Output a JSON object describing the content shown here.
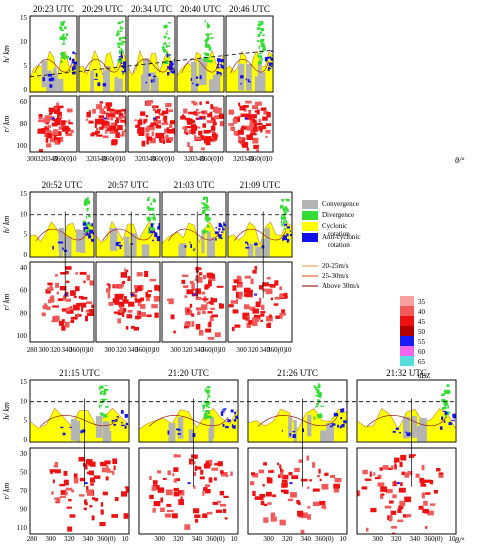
{
  "figure": {
    "rows": [
      {
        "titles": [
          "20:23 UTC",
          "20:29 UTC",
          "20:34 UTC",
          "20:40 UTC",
          "20:46 UTC"
        ],
        "h_ticks": [
          "0",
          "5",
          "10",
          "15"
        ],
        "r_ticks": [
          "60",
          "80",
          "100"
        ],
        "x_ticks": [
          "300",
          "320",
          "340",
          "360(0)",
          "10"
        ]
      },
      {
        "titles": [
          "20:52 UTC",
          "20:57 UTC",
          "21:03 UTC",
          "21:09 UTC"
        ],
        "h_ticks": [
          "0",
          "5",
          "10",
          "15"
        ],
        "r_ticks": [
          "40",
          "60",
          "80",
          "100"
        ],
        "x_ticks": [
          "280",
          "300",
          "320",
          "340",
          "360(0)",
          "10"
        ]
      },
      {
        "titles": [
          "21:15 UTC",
          "21:20 UTC",
          "21:26 UTC",
          "21:32 UTC"
        ],
        "h_ticks": [
          "0",
          "5",
          "10",
          "15"
        ],
        "r_ticks": [
          "30",
          "50",
          "70",
          "90",
          "110"
        ],
        "x_ticks": [
          "280",
          "300",
          "320",
          "340",
          "360(0)",
          "10"
        ]
      }
    ],
    "axis_labels": {
      "h": "h/ km",
      "r": "r/ km",
      "theta": "θ/°"
    },
    "legend": {
      "rotation": [
        {
          "label": "Convergence",
          "color": "#b4b4b4"
        },
        {
          "label": "Divergence",
          "color": "#33dd33"
        },
        {
          "label": "Cyclonic rotation",
          "color": "#ffff00"
        },
        {
          "label": "Anti-cyclonic rotation",
          "color": "#1111ee"
        }
      ],
      "shear": [
        {
          "label": "20-25m/s",
          "color": "#f2a055"
        },
        {
          "label": "25-30m/s",
          "color": "#e06a2a"
        },
        {
          "label": "Above 30m/s",
          "color": "#a02020"
        }
      ],
      "dbz": {
        "levels": [
          "35",
          "40",
          "45",
          "50",
          "55",
          "60",
          "65"
        ],
        "colors": [
          "#f7a0a0",
          "#f25a5a",
          "#ee1111",
          "#b00000",
          "#1a1aff",
          "#ee66ee",
          "#55dddd"
        ],
        "unit": "dBZ"
      }
    }
  }
}
